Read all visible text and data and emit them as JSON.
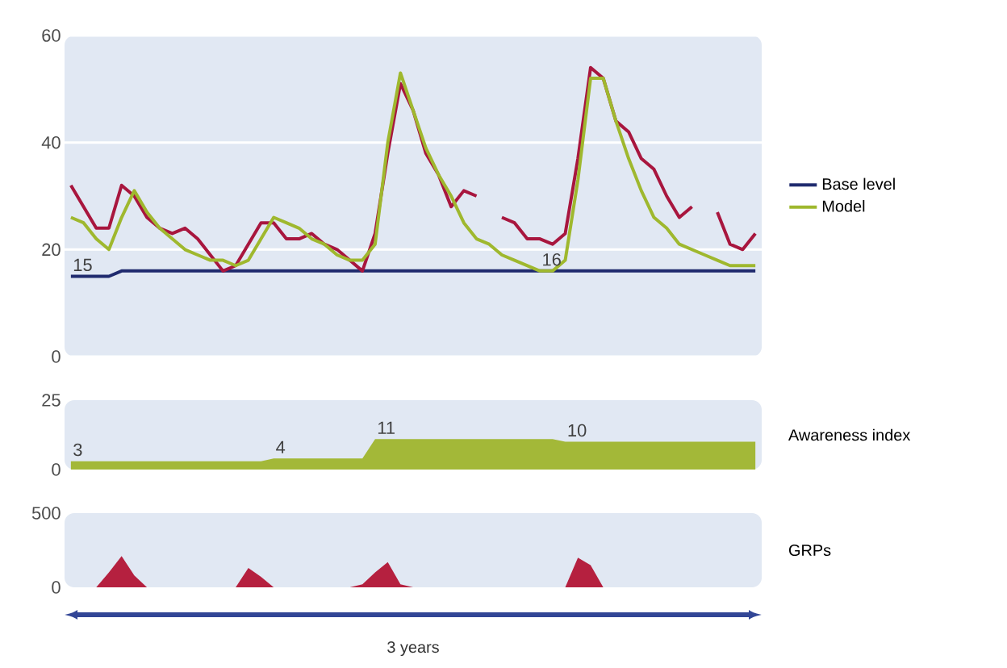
{
  "chart_data": [
    {
      "type": "line",
      "categories": [
        null,
        null,
        null,
        null,
        null,
        null,
        null,
        null,
        null,
        null,
        null,
        null,
        null,
        null,
        null,
        null,
        null,
        null,
        null,
        null,
        null,
        null,
        null,
        null,
        null,
        null,
        null,
        null,
        null,
        null,
        null,
        null,
        null,
        null,
        null,
        null,
        null,
        null,
        null,
        null,
        null,
        null,
        null,
        null,
        null,
        null,
        null,
        null,
        null,
        null,
        null,
        null,
        null,
        null,
        null
      ],
      "ylim": [
        0,
        60
      ],
      "yticks": [
        0,
        20,
        40,
        60
      ],
      "grid": "y",
      "legend": "right",
      "tick_labels": "y",
      "series": [
        {
          "name": "Base level",
          "color": "#1f2a6e",
          "values": [
            15,
            15,
            15,
            15,
            16,
            16,
            16,
            16,
            16,
            16,
            16,
            16,
            16,
            16,
            16,
            16,
            16,
            16,
            16,
            16,
            16,
            16,
            16,
            16,
            16,
            16,
            16,
            16,
            16,
            16,
            16,
            16,
            16,
            16,
            16,
            16,
            16,
            16,
            16,
            16,
            16,
            16,
            16,
            16,
            16,
            16,
            16,
            16,
            16,
            16,
            16,
            16,
            16,
            16,
            16
          ]
        },
        {
          "color": "#a8163e",
          "values": [
            32,
            28,
            24,
            24,
            32,
            30,
            26,
            24,
            23,
            24,
            22,
            19,
            16,
            17,
            21,
            25,
            25,
            22,
            22,
            23,
            21,
            20,
            18,
            16,
            23,
            38,
            51,
            46,
            38,
            34,
            28,
            31,
            30,
            null,
            26,
            25,
            22,
            22,
            21,
            23,
            37,
            54,
            52,
            44,
            42,
            37,
            35,
            30,
            26,
            28,
            null,
            27,
            21,
            20,
            23
          ]
        },
        {
          "name": "Model",
          "color": "#9fb82e",
          "values": [
            26,
            25,
            22,
            20,
            26,
            31,
            27,
            24,
            22,
            20,
            19,
            18,
            18,
            17,
            18,
            22,
            26,
            25,
            24,
            22,
            21,
            19,
            18,
            18,
            21,
            40,
            53,
            46,
            39,
            34,
            30,
            25,
            22,
            21,
            19,
            18,
            17,
            16,
            16,
            18,
            33,
            52,
            52,
            44,
            37,
            31,
            26,
            24,
            21,
            20,
            19,
            18,
            17,
            17,
            17
          ]
        }
      ],
      "annotations": [
        {
          "text": "15",
          "y": 15
        },
        {
          "text": "16",
          "y": 16
        }
      ]
    },
    {
      "type": "area",
      "categories": [
        null,
        null,
        null,
        null,
        null,
        null,
        null,
        null,
        null,
        null,
        null,
        null,
        null,
        null,
        null,
        null,
        null,
        null,
        null,
        null,
        null,
        null,
        null,
        null,
        null,
        null,
        null,
        null,
        null,
        null,
        null,
        null,
        null,
        null,
        null,
        null,
        null,
        null,
        null,
        null,
        null,
        null,
        null,
        null,
        null,
        null,
        null,
        null,
        null,
        null,
        null,
        null,
        null,
        null,
        null
      ],
      "ylim": [
        0,
        25
      ],
      "yticks": [
        0,
        25
      ],
      "tick_labels": "y",
      "series": [
        {
          "name": "Awareness index",
          "color": "#a3b838",
          "values": [
            3,
            3,
            3,
            3,
            3,
            3,
            3,
            3,
            3,
            3,
            3,
            3,
            3,
            3,
            3,
            3,
            4,
            4,
            4,
            4,
            4,
            4,
            4,
            4,
            11,
            11,
            11,
            11,
            11,
            11,
            11,
            11,
            11,
            11,
            11,
            11,
            11,
            11,
            11,
            10,
            10,
            10,
            10,
            10,
            10,
            10,
            10,
            10,
            10,
            10,
            10,
            10,
            10,
            10,
            10
          ]
        }
      ],
      "annotations": [
        {
          "text": "3",
          "y": 3
        },
        {
          "text": "4",
          "y": 4
        },
        {
          "text": "11",
          "y": 11
        },
        {
          "text": "10",
          "y": 10
        }
      ]
    },
    {
      "type": "area",
      "categories": [
        null,
        null,
        null,
        null,
        null,
        null,
        null,
        null,
        null,
        null,
        null,
        null,
        null,
        null,
        null,
        null,
        null,
        null,
        null,
        null,
        null,
        null,
        null,
        null,
        null,
        null,
        null,
        null,
        null,
        null,
        null,
        null,
        null,
        null,
        null,
        null,
        null,
        null,
        null,
        null,
        null,
        null,
        null,
        null,
        null,
        null,
        null,
        null,
        null,
        null,
        null,
        null,
        null,
        null,
        null
      ],
      "ylim": [
        0,
        500
      ],
      "yticks": [
        0,
        500
      ],
      "tick_labels": "y",
      "xlabel": "3 years",
      "series": [
        {
          "name": "GRPs",
          "color": "#b5203f",
          "values": [
            0,
            0,
            0,
            100,
            210,
            80,
            0,
            0,
            0,
            0,
            0,
            0,
            0,
            0,
            130,
            70,
            0,
            0,
            0,
            0,
            0,
            0,
            0,
            20,
            100,
            170,
            20,
            0,
            0,
            0,
            0,
            0,
            0,
            0,
            0,
            0,
            0,
            0,
            0,
            0,
            200,
            150,
            0,
            0,
            0,
            0,
            0,
            0,
            0,
            0,
            0,
            0,
            0,
            0,
            0
          ]
        }
      ]
    }
  ]
}
